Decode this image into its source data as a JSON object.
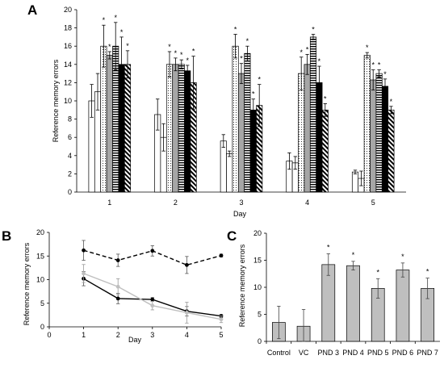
{
  "panels": {
    "a": "A",
    "b": "B",
    "c": "C"
  },
  "significance_mark": "*",
  "chart_data": [
    {
      "panel": "A",
      "type": "bar",
      "ylabel": "Reference memory errors",
      "xlabel": "Day",
      "ylim": [
        0,
        20
      ],
      "yticks": [
        0,
        2,
        4,
        6,
        8,
        10,
        12,
        14,
        16,
        18,
        20
      ],
      "categories": [
        "1",
        "2",
        "3",
        "4",
        "5"
      ],
      "grid": false,
      "series": [
        {
          "values": [
            10,
            8.5,
            5.6,
            3.4,
            2.2
          ],
          "errors": [
            1.8,
            1.7,
            0.7,
            0.9,
            0.2
          ],
          "sig": [
            false,
            false,
            false,
            false,
            false
          ],
          "fill": "white"
        },
        {
          "values": [
            11,
            6,
            4.2,
            3.2,
            1.5
          ],
          "errors": [
            2,
            1.5,
            0.3,
            0.7,
            0.8
          ],
          "sig": [
            false,
            false,
            false,
            false,
            false
          ],
          "fill": "white"
        },
        {
          "values": [
            16,
            14,
            16,
            13,
            15
          ],
          "errors": [
            2.3,
            1.4,
            1.3,
            1.8,
            0.3
          ],
          "sig": [
            true,
            true,
            true,
            true,
            true
          ],
          "fill": "dots"
        },
        {
          "values": [
            15,
            14,
            13,
            14,
            12.3
          ],
          "errors": [
            0.4,
            0.7,
            1.1,
            1.1,
            1.1
          ],
          "sig": [
            true,
            true,
            true,
            true,
            true
          ],
          "fill": "gray"
        },
        {
          "values": [
            16,
            14,
            15.2,
            17,
            13
          ],
          "errors": [
            2.6,
            0.5,
            0.8,
            0.3,
            0.4
          ],
          "sig": [
            true,
            true,
            true,
            true,
            true
          ],
          "fill": "hlines"
        },
        {
          "values": [
            14,
            13.3,
            9,
            12,
            11.6
          ],
          "errors": [
            3,
            0.6,
            1.2,
            1.8,
            0.8
          ],
          "sig": [
            true,
            true,
            true,
            true,
            true
          ],
          "fill": "black"
        },
        {
          "values": [
            14,
            12,
            9.5,
            9,
            9
          ],
          "errors": [
            1.5,
            2.9,
            2.3,
            0.7,
            0.4
          ],
          "sig": [
            true,
            true,
            true,
            true,
            true
          ],
          "fill": "diag"
        }
      ]
    },
    {
      "panel": "B",
      "type": "line",
      "ylabel": "Reference memory errors",
      "xlabel": "Day",
      "xlim": [
        0,
        5
      ],
      "ylim": [
        0,
        20
      ],
      "xticks": [
        0,
        1,
        2,
        3,
        4,
        5
      ],
      "yticks": [
        0,
        5,
        10,
        15,
        20
      ],
      "grid": false,
      "series": [
        {
          "style": "dashed",
          "color": "#000000",
          "x": [
            1,
            2,
            3,
            4,
            5
          ],
          "values": [
            16.2,
            14.1,
            16.1,
            13.1,
            15.1
          ],
          "errors": [
            2.1,
            1.3,
            1.1,
            1.8,
            0.3
          ]
        },
        {
          "style": "solid",
          "color": "#000000",
          "x": [
            1,
            2,
            3,
            4,
            5
          ],
          "values": [
            10.2,
            6,
            5.8,
            3.3,
            2.3
          ],
          "errors": [
            1.5,
            1.1,
            0.4,
            1,
            0.3
          ]
        },
        {
          "style": "solid",
          "color": "#bfbfbf",
          "x": [
            1,
            2,
            3,
            4,
            5
          ],
          "values": [
            11.3,
            8.5,
            4.5,
            3,
            1.6
          ],
          "errors": [
            1.9,
            1.7,
            0.9,
            2.2,
            0.7
          ]
        }
      ]
    },
    {
      "panel": "C",
      "type": "bar",
      "ylabel": "Reference memory errors",
      "xlabel": "",
      "ylim": [
        0,
        20
      ],
      "yticks": [
        0,
        5,
        10,
        15,
        20
      ],
      "grid": false,
      "categories": [
        "Control",
        "VC",
        "PND 3",
        "PND 4",
        "PND 5",
        "PND 6",
        "PND 7"
      ],
      "values": [
        3.5,
        2.8,
        14.2,
        14,
        9.8,
        13.2,
        9.8
      ],
      "errors": [
        3,
        3.1,
        2,
        0.8,
        1.8,
        1.3,
        1.9
      ],
      "sig": [
        false,
        false,
        true,
        true,
        true,
        true,
        true
      ],
      "bar_color": "#bfbfbf"
    }
  ]
}
